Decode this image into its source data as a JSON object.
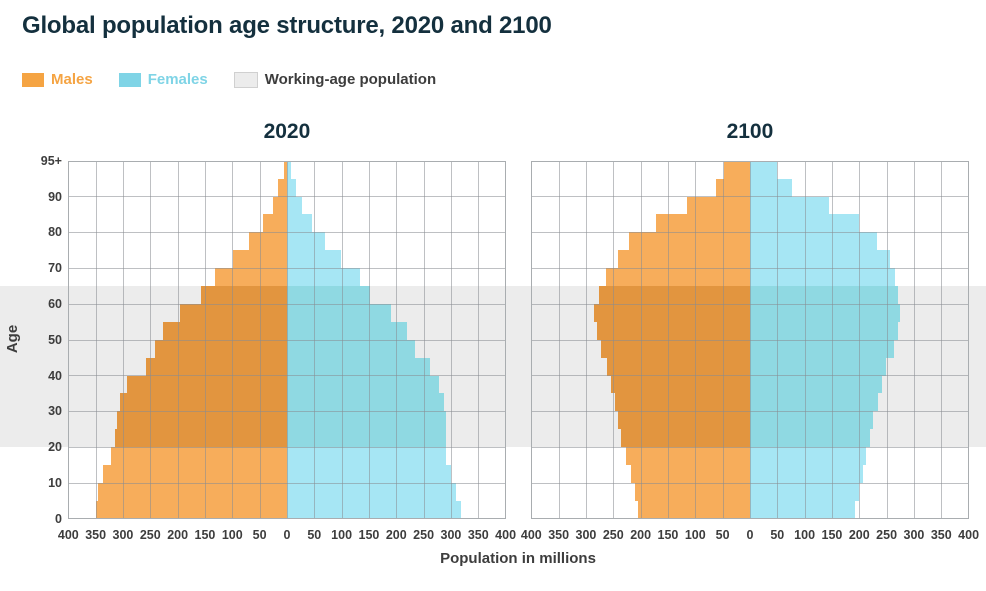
{
  "header": {
    "title": "Global population age structure, 2020 and 2100"
  },
  "legend": {
    "males_label": "Males",
    "females_label": "Females",
    "working_label": "Working-age population"
  },
  "colors": {
    "male": "#F7AD5B",
    "male_band": "#E2953F",
    "female": "#A6E6F4",
    "female_band": "#8FD9E2",
    "male_legend_text": "#F5A443",
    "female_legend_text": "#7FD4E6",
    "working_band": "#ECECEC",
    "working_swatch_border": "#D0D0D0",
    "grid": "#A9ADB0",
    "heading": "#14303E",
    "axis_text": "#3D3D3D"
  },
  "chart_data": {
    "type": "bar",
    "subtype": "paired population pyramids (horizontal bars, males left / females right)",
    "units": "millions of people per 5-year age group",
    "xlabel": "Population in millions",
    "ylabel": "Age",
    "x_max": 400,
    "x_tick_step": 50,
    "x_ticks": [
      "400",
      "350",
      "300",
      "250",
      "200",
      "150",
      "100",
      "50",
      "0",
      "50",
      "100",
      "150",
      "200",
      "250",
      "300",
      "350",
      "400"
    ],
    "y_ticks": [
      {
        "label": "95+",
        "age": 100
      },
      {
        "label": "90",
        "age": 90
      },
      {
        "label": "80",
        "age": 80
      },
      {
        "label": "70",
        "age": 70
      },
      {
        "label": "60",
        "age": 60
      },
      {
        "label": "50",
        "age": 50
      },
      {
        "label": "40",
        "age": 40
      },
      {
        "label": "30",
        "age": 30
      },
      {
        "label": "20",
        "age": 20
      },
      {
        "label": "10",
        "age": 10
      },
      {
        "label": "0",
        "age": 0
      }
    ],
    "age_groups": [
      "0-4",
      "5-9",
      "10-14",
      "15-19",
      "20-24",
      "25-29",
      "30-34",
      "35-39",
      "40-44",
      "45-49",
      "50-54",
      "55-59",
      "60-64",
      "65-69",
      "70-74",
      "75-79",
      "80-84",
      "85-89",
      "90-94",
      "95+"
    ],
    "working_age": {
      "label": "Working-age population",
      "age_min": 20,
      "age_max": 65
    },
    "pyramids": [
      {
        "title": "2020",
        "males": [
          350,
          346,
          337,
          321,
          315,
          311,
          306,
          293,
          257,
          242,
          226,
          195,
          158,
          132,
          98,
          70,
          44,
          25,
          16,
          6
        ],
        "females": [
          318,
          310,
          300,
          291,
          291,
          291,
          288,
          278,
          262,
          235,
          219,
          190,
          152,
          133,
          98,
          69,
          45,
          27,
          17,
          7
        ]
      },
      {
        "title": "2100",
        "males": [
          205,
          210,
          218,
          226,
          236,
          241,
          246,
          254,
          262,
          272,
          280,
          285,
          276,
          264,
          242,
          221,
          171,
          116,
          63,
          48
        ],
        "females": [
          193,
          199,
          207,
          213,
          220,
          226,
          234,
          242,
          249,
          263,
          271,
          274,
          271,
          265,
          256,
          232,
          199,
          145,
          77,
          49
        ]
      }
    ],
    "grid": true,
    "legend_position": "top-left"
  }
}
